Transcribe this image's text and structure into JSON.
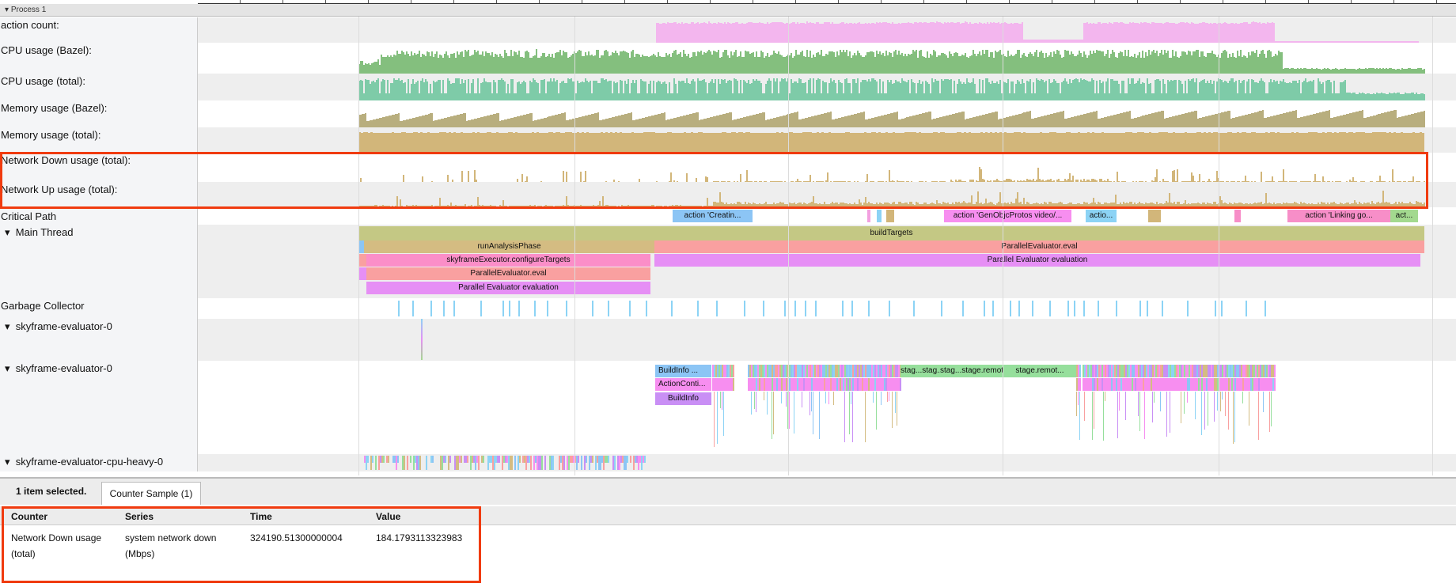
{
  "process": {
    "title": "Process 1"
  },
  "tracks": {
    "action_count": "action count:",
    "cpu_bazel": "CPU usage (Bazel):",
    "cpu_total": "CPU usage (total):",
    "mem_bazel": "Memory usage (Bazel):",
    "mem_total": "Memory usage (total):",
    "net_down": "Network Down usage (total):",
    "net_up": "Network Up usage (total):",
    "critical_path": "Critical Path",
    "main_thread": "Main Thread",
    "gc": "Garbage Collector",
    "sky0a": "skyframe-evaluator-0",
    "sky0b": "skyframe-evaluator-0",
    "cpu_heavy": "skyframe-evaluator-cpu-heavy-0"
  },
  "colors": {
    "action": "#f3b6ee",
    "cpu_bazel": "#84bf7e",
    "cpu_total": "#7ecba8",
    "mem_bazel": "#b8ae7e",
    "mem_total": "#d2b67a",
    "net": "#d2b67a",
    "highlight": "#f03b0f"
  },
  "critical_path": [
    "action 'Creatin...",
    "action 'GenObjcProtos video/...",
    "actio...",
    "action 'Linking go...",
    "act..."
  ],
  "main_thread": {
    "buildTargets": "buildTargets",
    "runAnalysisPhase": "runAnalysisPhase",
    "eval": "ParallelEvaluator.eval",
    "configure": "skyframeExecutor.configureTargets",
    "evaluation": "Parallel Evaluator evaluation"
  },
  "sky0": {
    "buildinfo1": "BuildInfo ...",
    "actioncontext": "ActionConti...",
    "buildinfo2": "BuildInfo",
    "stag1": "stag...stag...",
    "stag2": "stag...stage.remot...",
    "stag3": "stage.remot..."
  },
  "panel": {
    "selected": "1 item selected.",
    "tab": "Counter Sample (1)",
    "headers": [
      "Counter",
      "Series",
      "Time",
      "Value"
    ],
    "row": {
      "counter": "Network Down usage (total)",
      "series": "system network down (Mbps)",
      "time": "324190.51300000004",
      "value": "184.1793113323983"
    }
  }
}
